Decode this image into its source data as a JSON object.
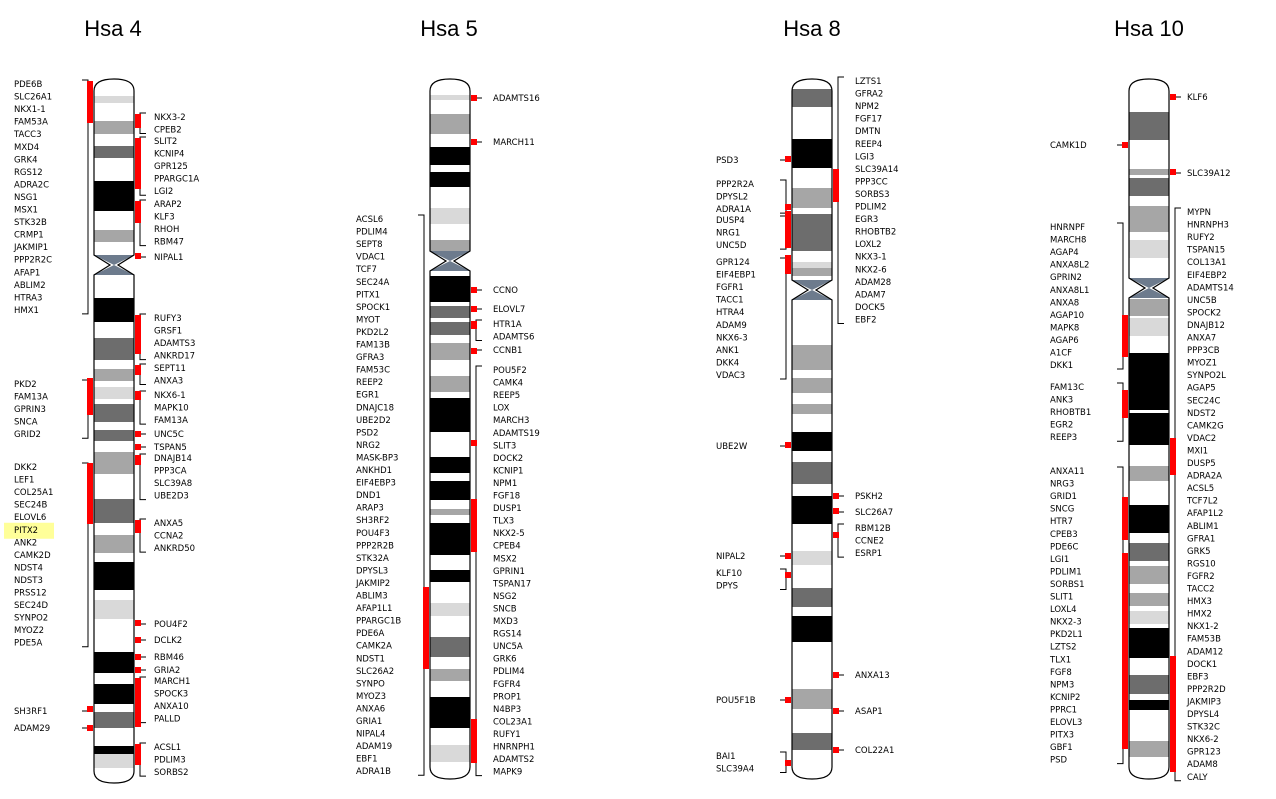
{
  "chromosomes": [
    {
      "name": "Hsa 4",
      "left_groups": [
        [
          "PDE6B",
          "SLC26A1",
          "NKX1-1",
          "FAM53A",
          "TACC3",
          "MXD4",
          "GRK4",
          "RGS12",
          "ADRA2C",
          "NSG1",
          "MSX1",
          "STK32B",
          "CRMP1",
          "JAKMIP1",
          "PPP2R2C",
          "AFAP1",
          "ABLIM2",
          "HTRA3",
          "HMX1"
        ],
        [
          "PKD2",
          "FAM13A",
          "GPRIN3",
          "SNCA",
          "GRID2"
        ],
        [
          "DKK2",
          "LEF1",
          "COL25A1",
          "SEC24B",
          "ELOVL6",
          "PITX2",
          "ANK2",
          "CAMK2D",
          "NDST4",
          "NDST3",
          "PRSS12",
          "SEC24D",
          "SYNPO2",
          "MYOZ2",
          "PDE5A"
        ],
        [
          "SH3RF1"
        ],
        [
          "ADAM29"
        ]
      ],
      "right_groups": [
        [
          "NKX3-2",
          "CPEB2"
        ],
        [
          "SLIT2",
          "KCNIP4",
          "GPR125",
          "PPARGC1A",
          "LGI2"
        ],
        [
          "ARAP2",
          "KLF3",
          "RHOH",
          "RBM47"
        ],
        [
          "NIPAL1"
        ],
        [
          "RUFY3",
          "GRSF1",
          "ADAMTS3",
          "ANKRD17"
        ],
        [
          "SEPT11",
          "ANXA3"
        ],
        [
          "NKX6-1",
          "MAPK10",
          "FAM13A"
        ],
        [
          "UNC5C"
        ],
        [
          "TSPAN5"
        ],
        [
          "DNAJB14",
          "PPP3CA",
          "SLC39A8",
          "UBE2D3"
        ],
        [
          "ANXA5",
          "CCNA2",
          "ANKRD50"
        ],
        [
          "POU4F2"
        ],
        [
          "DCLK2"
        ],
        [
          "RBM46"
        ],
        [
          "GRIA2"
        ],
        [
          "MARCH1",
          "SPOCK3",
          "ANXA10",
          "PALLD"
        ],
        [
          "ACSL1",
          "PDLIM3",
          "SORBS2"
        ]
      ]
    },
    {
      "name": "Hsa 5",
      "left_groups": [
        [
          "ACSL6",
          "PDLIM4",
          "SEPT8",
          "VDAC1",
          "TCF7",
          "SEC24A",
          "PITX1",
          "SPOCK1",
          "MYOT",
          "PKD2L2",
          "FAM13B",
          "GFRA3",
          "FAM53C",
          "REEP2",
          "EGR1",
          "DNAJC18",
          "UBE2D2",
          "PSD2",
          "NRG2",
          "MASK-BP3",
          "ANKHD1",
          "EIF4EBP3",
          "DND1",
          "ARAP3",
          "SH3RF2",
          "POU4F3",
          "PPP2R2B",
          "STK32A",
          "DPYSL3",
          "JAKMIP2",
          "ABLIM3",
          "AFAP1L1",
          "PPARGC1B",
          "PDE6A",
          "CAMK2A",
          "NDST1",
          "SLC26A2",
          "SYNPO",
          "MYOZ3",
          "ANXA6",
          "GRIA1",
          "NIPAL4",
          "ADAM19",
          "EBF1",
          "ADRA1B"
        ]
      ],
      "right_groups": [
        [
          "ADAMTS16"
        ],
        [
          "MARCH11"
        ],
        [
          "CCNO"
        ],
        [
          "ELOVL7"
        ],
        [
          "HTR1A",
          "ADAMTS6"
        ],
        [
          "CCNB1"
        ],
        [
          "POU5F2",
          "CAMK4",
          "REEP5",
          "LOX",
          "MARCH3",
          "ADAMTS19",
          "SLIT3",
          "DOCK2",
          "KCNIP1",
          "NPM1",
          "FGF18",
          "DUSP1",
          "TLX3",
          "NKX2-5",
          "CPEB4",
          "MSX2",
          "GPRIN1",
          "TSPAN17",
          "NSG2",
          "SNCB",
          "MXD3",
          "RGS14",
          "UNC5A",
          "GRK6",
          "PDLIM4",
          "FGFR4",
          "PROP1",
          "N4BP3",
          "COL23A1",
          "RUFY1",
          "HNRNPH1",
          "ADAMTS2",
          "MAPK9"
        ]
      ]
    },
    {
      "name": "Hsa 8",
      "left_groups": [
        [
          "PSD3"
        ],
        [
          "PPP2R2A",
          "DPYSL2",
          "ADRA1A"
        ],
        [
          "DUSP4",
          "NRG1",
          "UNC5D"
        ],
        [
          "GPR124",
          "EIF4EBP1",
          "FGFR1",
          "TACC1",
          "HTRA4",
          "ADAM9",
          "NKX6-3",
          "ANK1",
          "DKK4",
          "VDAC3"
        ],
        [
          "UBE2W"
        ],
        [
          "NIPAL2"
        ],
        [
          "KLF10",
          "DPYS"
        ],
        [
          "POU5F1B"
        ],
        [
          "BAI1",
          "SLC39A4"
        ]
      ],
      "right_groups": [
        [
          "LZTS1",
          "GFRA2",
          "NPM2",
          "FGF17",
          "DMTN",
          "REEP4",
          "LGI3",
          "SLC39A14",
          "PPP3CC",
          "SORBS3",
          "PDLIM2",
          "EGR3",
          "RHOBTB2",
          "LOXL2",
          "NKX3-1",
          "NKX2-6",
          "ADAM28",
          "ADAM7",
          "DOCK5",
          "EBF2"
        ],
        [
          "PSKH2"
        ],
        [
          "SLC26A7"
        ],
        [
          "RBM12B",
          "CCNE2",
          "ESRP1"
        ],
        [
          "ANXA13"
        ],
        [
          "ASAP1"
        ],
        [
          "COL22A1"
        ]
      ]
    },
    {
      "name": "Hsa 10",
      "left_groups": [
        [
          "CAMK1D"
        ],
        [
          "HNRNPF",
          "MARCH8",
          "AGAP4",
          "ANXA8L2",
          "GPRIN2",
          "ANXA8L1",
          "ANXA8",
          "AGAP10",
          "MAPK8",
          "AGAP6",
          "A1CF",
          "DKK1"
        ],
        [
          "FAM13C",
          "ANK3",
          "RHOBTB1",
          "EGR2",
          "REEP3"
        ],
        [
          "ANXA11",
          "NRG3",
          "GRID1",
          "SNCG",
          "HTR7",
          "CPEB3",
          "PDE6C",
          "LGI1",
          "PDLIM1",
          "SORBS1",
          "SLIT1",
          "LOXL4",
          "NKX2-3",
          "PKD2L1",
          "LZTS2",
          "TLX1",
          "FGF8",
          "NPM3",
          "KCNIP2",
          "PPRC1",
          "ELOVL3",
          "PITX3",
          "GBF1",
          "PSD"
        ]
      ],
      "right_groups": [
        [
          "KLF6"
        ],
        [
          "SLC39A12"
        ],
        [
          "MYPN",
          "HNRNPH3",
          "RUFY2",
          "TSPAN15",
          "COL13A1",
          "EIF4EBP2",
          "ADAMTS14",
          "UNC5B",
          "SPOCK2",
          "DNAJB12",
          "ANXA7",
          "PPP3CB",
          "MYOZ1",
          "SYNPO2L",
          "AGAP5",
          "SEC24C",
          "NDST2",
          "CAMK2G",
          "VDAC2",
          "MXI1",
          "DUSP5",
          "ADRA2A",
          "ACSL5",
          "TCF7L2",
          "AFAP1L2",
          "ABLIM1",
          "GFRA1",
          "GRK5",
          "RGS10",
          "FGFR2",
          "TACC2",
          "HMX3",
          "HMX2",
          "NKX1-2",
          "FAM53B",
          "ADAM12",
          "DOCK1",
          "EBF3",
          "PPP2R2D",
          "JAKMIP3",
          "DPYSL4",
          "STK32C",
          "NKX6-2",
          "GPR123",
          "ADAM8",
          "CALY"
        ]
      ]
    }
  ],
  "highlight": {
    "gene": "PITX2",
    "color": "#ffff99"
  },
  "colors": {
    "marker": "#ff0000",
    "centromere": "#6d7b8d"
  }
}
